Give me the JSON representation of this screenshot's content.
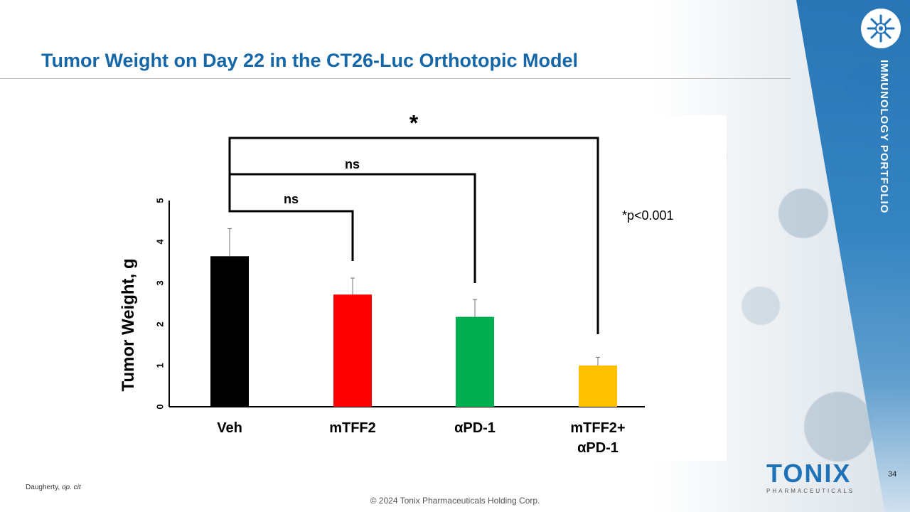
{
  "slide": {
    "title": "Tumor Weight on Day 22 in the CT26-Luc Orthotopic Model",
    "side_label": "IMMUNOLOGY PORTFOLIO",
    "footnote_author": "Daugherty, ",
    "footnote_cite": "op. cit",
    "copyright": "© 2024 Tonix Pharmaceuticals Holding Corp.",
    "page_number": "34",
    "brand_name": "TONIX",
    "brand_sub": "PHARMACEUTICALS"
  },
  "chart_data": {
    "type": "bar",
    "ylabel": "Tumor Weight, g",
    "ylim": [
      0,
      5
    ],
    "yticks": [
      "0",
      "1",
      "2",
      "3",
      "4",
      "5"
    ],
    "categories": [
      {
        "line1": "Veh",
        "line2": ""
      },
      {
        "line1": "mTFF2",
        "line2": ""
      },
      {
        "line1": "αPD-1",
        "line2": ""
      },
      {
        "line1": "mTFF2+",
        "line2": "αPD-1"
      }
    ],
    "values": [
      3.65,
      2.72,
      2.18,
      1.0
    ],
    "errors": [
      0.67,
      0.4,
      0.42,
      0.2
    ],
    "colors": [
      "#000000",
      "#ff0000",
      "#00b050",
      "#ffc000"
    ],
    "comparisons": [
      {
        "from": 0,
        "to": 1,
        "label": "ns"
      },
      {
        "from": 0,
        "to": 2,
        "label": "ns"
      },
      {
        "from": 0,
        "to": 3,
        "label": "*"
      }
    ],
    "annotation": "*p<0.001"
  }
}
